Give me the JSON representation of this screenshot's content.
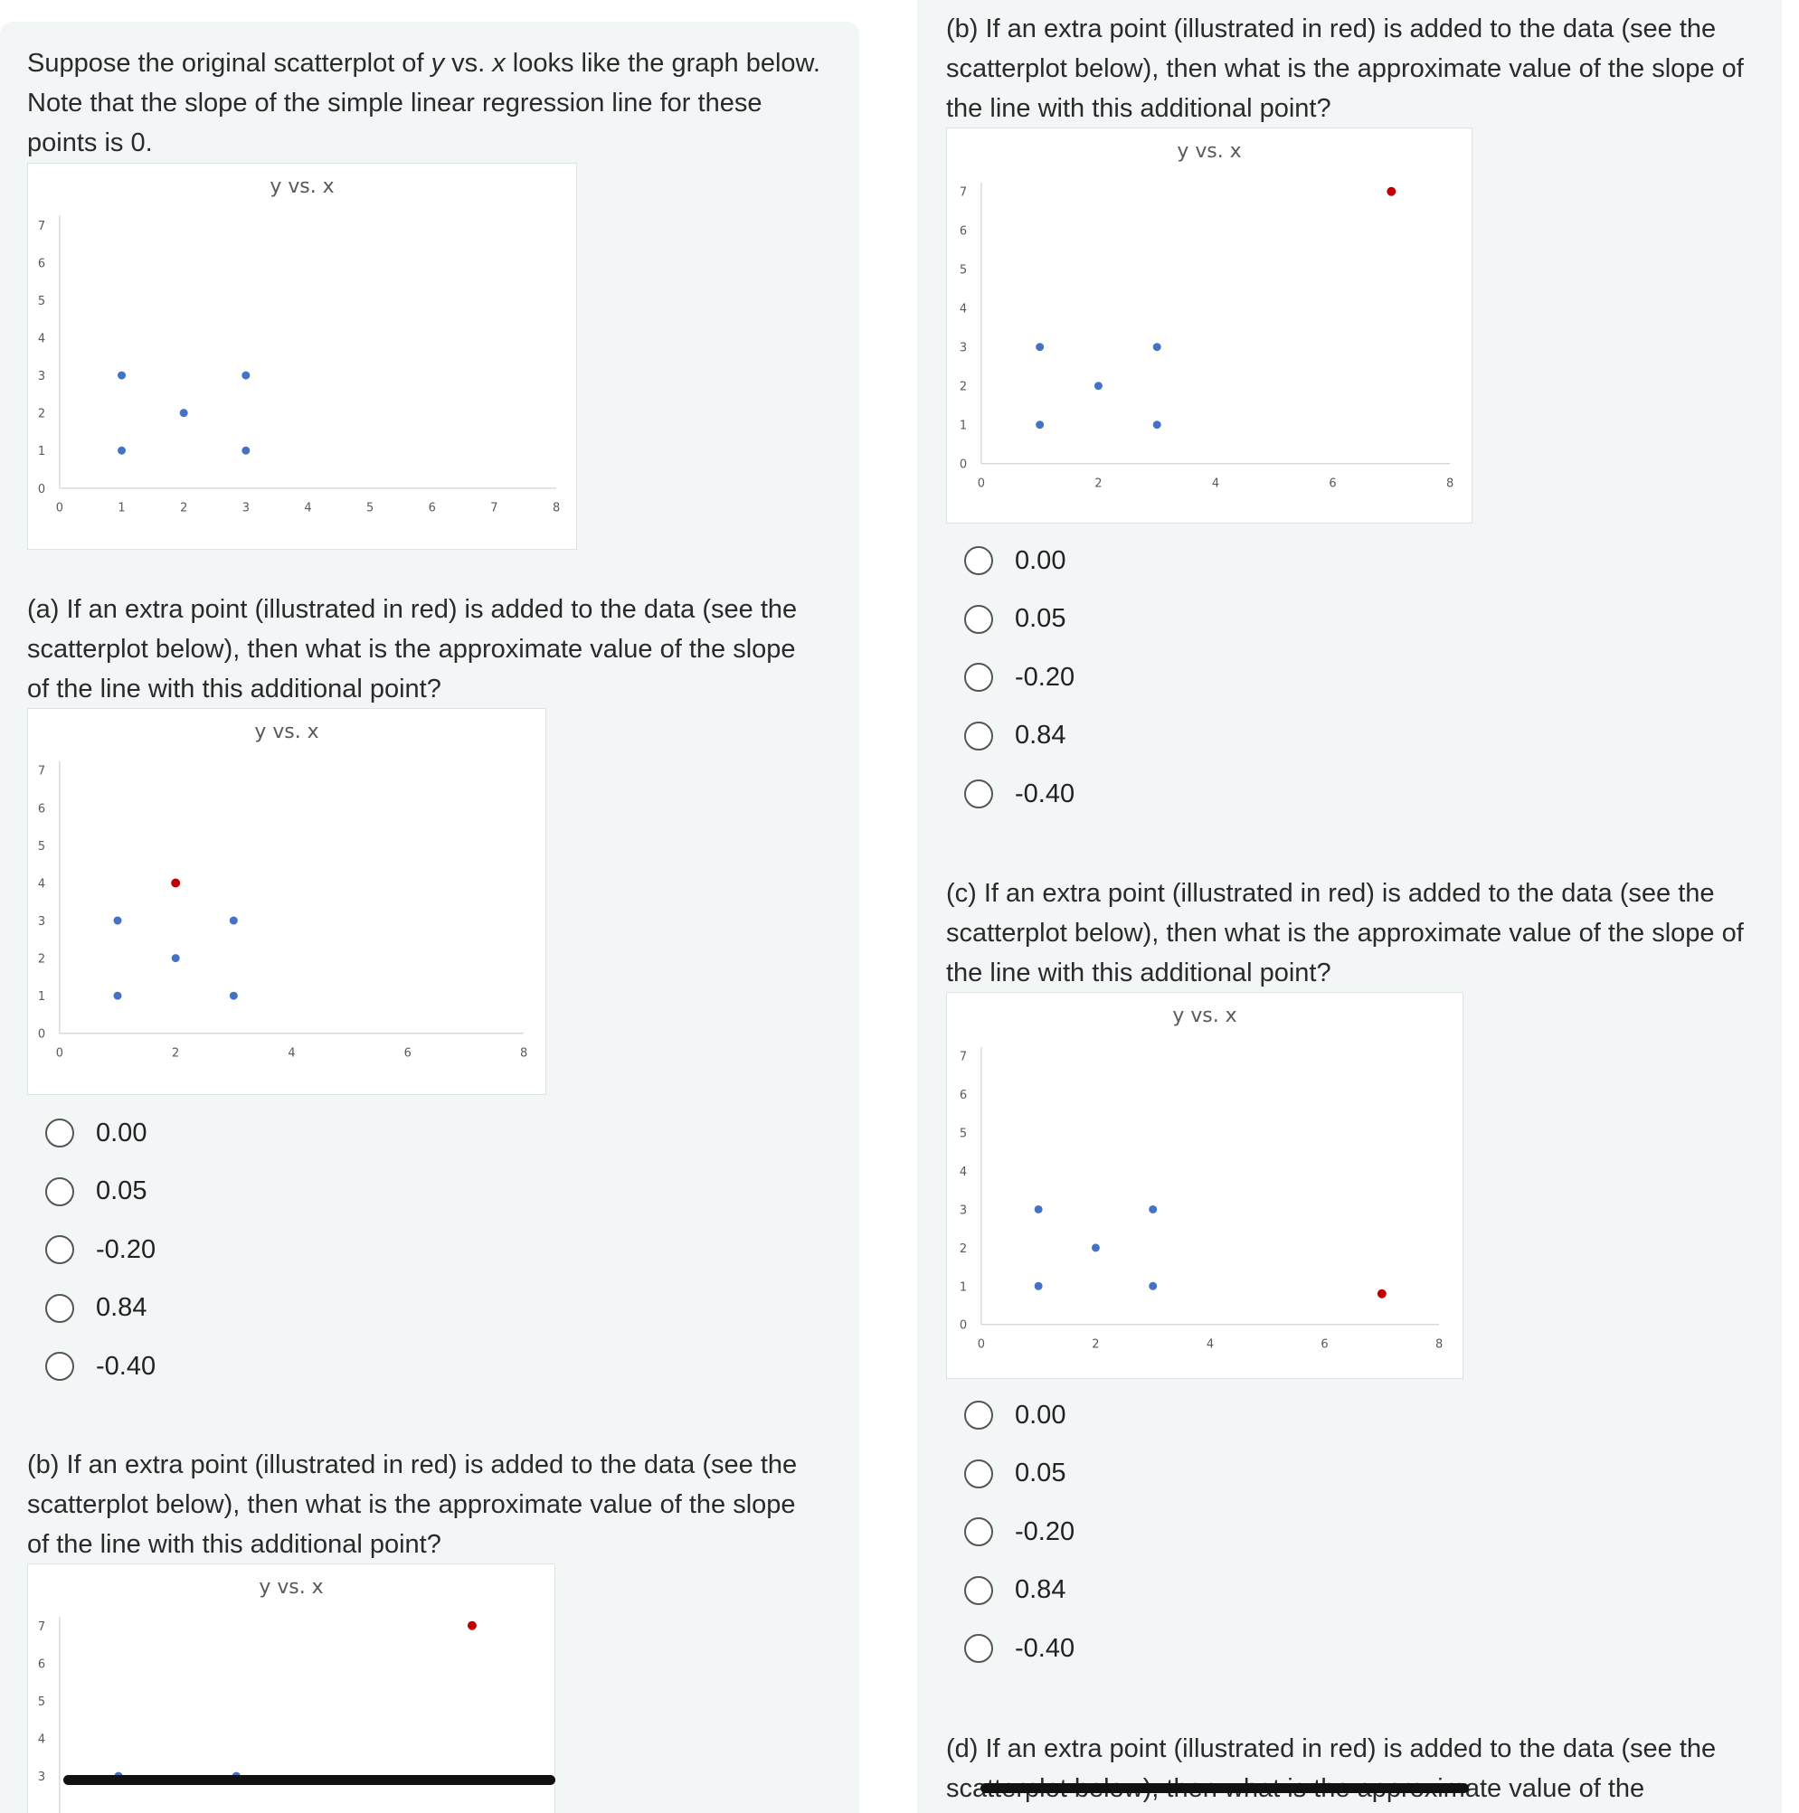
{
  "intro": {
    "before_y": "Suppose the original scatterplot of ",
    "y": "y",
    "vs": " vs. ",
    "x": "x",
    "after_x": " looks like the graph below. Note that the slope of the simple linear regression line for these points is 0."
  },
  "questions": {
    "a": "(a) If an extra point (illustrated in red) is added to the data (see the scatterplot below), then what is the approximate value of the slope of the line with this additional point?",
    "b": "(b) If an extra point (illustrated in red) is added to the data (see the scatterplot below), then what is the approximate value of the slope of the line with this additional point?",
    "c": "(c) If an extra point (illustrated in red) is added to the data (see the scatterplot below), then what is the approximate value of the slope of the line with this additional point?",
    "d": "(d) If an extra point (illustrated in red) is added to the data (see the scatterplot below), then what is the approximate value of the"
  },
  "options": [
    "0.00",
    "0.05",
    "-0.20",
    "0.84",
    "-0.40"
  ],
  "colors": {
    "base_point": "#4472c4",
    "extra_point": "#c00000"
  },
  "chart_data": [
    {
      "id": "original",
      "type": "scatter",
      "title": "y vs. x",
      "xlim": [
        0,
        8
      ],
      "ylim": [
        0,
        7
      ],
      "xticks": [
        "0",
        "1",
        "2",
        "3",
        "4",
        "5",
        "6",
        "7",
        "8"
      ],
      "yticks": [
        "0",
        "1",
        "2",
        "3",
        "4",
        "5",
        "6",
        "7"
      ],
      "points": [
        [
          1,
          1
        ],
        [
          1,
          3
        ],
        [
          2,
          2
        ],
        [
          3,
          1
        ],
        [
          3,
          3
        ]
      ],
      "extra": null
    },
    {
      "id": "a",
      "type": "scatter",
      "title": "y vs. x",
      "xlim": [
        0,
        8
      ],
      "ylim": [
        0,
        7
      ],
      "xticks": [
        "0",
        "2",
        "4",
        "6",
        "8"
      ],
      "yticks": [
        "0",
        "1",
        "2",
        "3",
        "4",
        "5",
        "6",
        "7"
      ],
      "points": [
        [
          1,
          1
        ],
        [
          1,
          3
        ],
        [
          2,
          2
        ],
        [
          3,
          1
        ],
        [
          3,
          3
        ]
      ],
      "extra": [
        2,
        4
      ]
    },
    {
      "id": "b-left",
      "type": "scatter",
      "title": "y vs. x",
      "xlim": [
        0,
        8
      ],
      "ylim": [
        0,
        7
      ],
      "xticks": [],
      "yticks": [
        "3",
        "4",
        "5",
        "6",
        "7"
      ],
      "points": [
        [
          1,
          3
        ],
        [
          3,
          3
        ]
      ],
      "extra": [
        7,
        7
      ]
    },
    {
      "id": "b",
      "type": "scatter",
      "title": "y vs. x",
      "xlim": [
        0,
        8
      ],
      "ylim": [
        0,
        7
      ],
      "xticks": [
        "0",
        "2",
        "4",
        "6",
        "8"
      ],
      "yticks": [
        "0",
        "1",
        "2",
        "3",
        "4",
        "5",
        "6",
        "7"
      ],
      "points": [
        [
          1,
          1
        ],
        [
          1,
          3
        ],
        [
          2,
          2
        ],
        [
          3,
          1
        ],
        [
          3,
          3
        ]
      ],
      "extra": [
        7,
        7
      ]
    },
    {
      "id": "c",
      "type": "scatter",
      "title": "y vs. x",
      "xlim": [
        0,
        8
      ],
      "ylim": [
        0,
        7
      ],
      "xticks": [
        "0",
        "2",
        "4",
        "6",
        "8"
      ],
      "yticks": [
        "0",
        "1",
        "2",
        "3",
        "4",
        "5",
        "6",
        "7"
      ],
      "points": [
        [
          1,
          1
        ],
        [
          1,
          3
        ],
        [
          2,
          2
        ],
        [
          3,
          1
        ],
        [
          3,
          3
        ]
      ],
      "extra": [
        7,
        0.8
      ]
    }
  ]
}
